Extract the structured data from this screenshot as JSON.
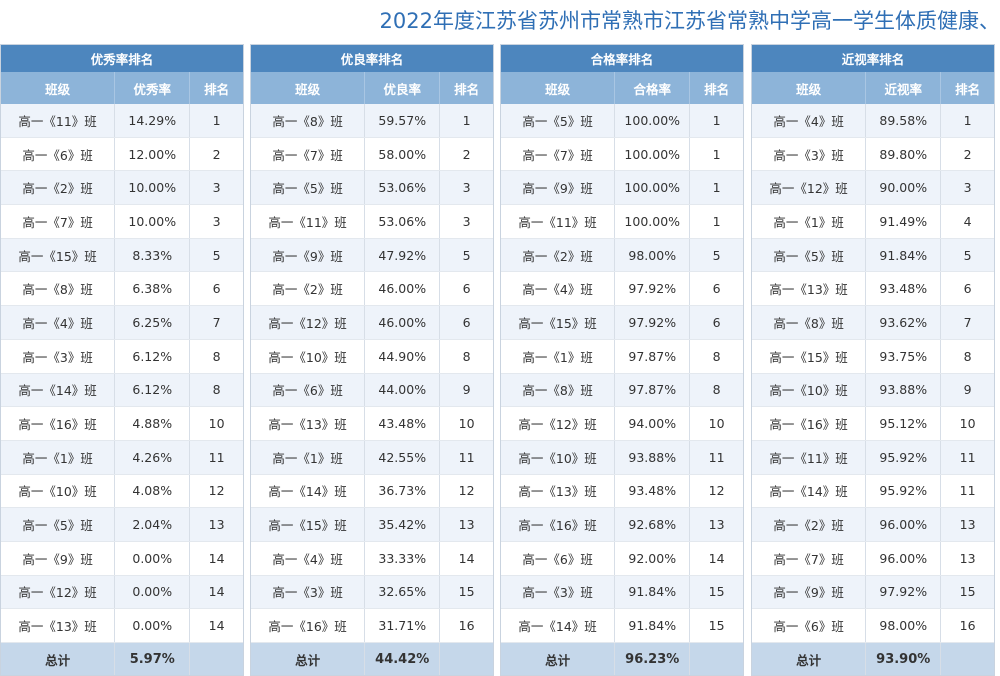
{
  "title": "2022年度江苏省苏州市常熟市江苏省常熟中学高一学生体质健康、",
  "panels": [
    {
      "title": "优秀率排名",
      "headers": [
        "班级",
        "优秀率",
        "排名"
      ],
      "rows": [
        [
          "高一《11》班",
          "14.29%",
          "1"
        ],
        [
          "高一《6》班",
          "12.00%",
          "2"
        ],
        [
          "高一《2》班",
          "10.00%",
          "3"
        ],
        [
          "高一《7》班",
          "10.00%",
          "3"
        ],
        [
          "高一《15》班",
          "8.33%",
          "5"
        ],
        [
          "高一《8》班",
          "6.38%",
          "6"
        ],
        [
          "高一《4》班",
          "6.25%",
          "7"
        ],
        [
          "高一《3》班",
          "6.12%",
          "8"
        ],
        [
          "高一《14》班",
          "6.12%",
          "8"
        ],
        [
          "高一《16》班",
          "4.88%",
          "10"
        ],
        [
          "高一《1》班",
          "4.26%",
          "11"
        ],
        [
          "高一《10》班",
          "4.08%",
          "12"
        ],
        [
          "高一《5》班",
          "2.04%",
          "13"
        ],
        [
          "高一《9》班",
          "0.00%",
          "14"
        ],
        [
          "高一《12》班",
          "0.00%",
          "14"
        ],
        [
          "高一《13》班",
          "0.00%",
          "14"
        ]
      ],
      "total_label": "总计",
      "total_value": "5.97%"
    },
    {
      "title": "优良率排名",
      "headers": [
        "班级",
        "优良率",
        "排名"
      ],
      "rows": [
        [
          "高一《8》班",
          "59.57%",
          "1"
        ],
        [
          "高一《7》班",
          "58.00%",
          "2"
        ],
        [
          "高一《5》班",
          "53.06%",
          "3"
        ],
        [
          "高一《11》班",
          "53.06%",
          "3"
        ],
        [
          "高一《9》班",
          "47.92%",
          "5"
        ],
        [
          "高一《2》班",
          "46.00%",
          "6"
        ],
        [
          "高一《12》班",
          "46.00%",
          "6"
        ],
        [
          "高一《10》班",
          "44.90%",
          "8"
        ],
        [
          "高一《6》班",
          "44.00%",
          "9"
        ],
        [
          "高一《13》班",
          "43.48%",
          "10"
        ],
        [
          "高一《1》班",
          "42.55%",
          "11"
        ],
        [
          "高一《14》班",
          "36.73%",
          "12"
        ],
        [
          "高一《15》班",
          "35.42%",
          "13"
        ],
        [
          "高一《4》班",
          "33.33%",
          "14"
        ],
        [
          "高一《3》班",
          "32.65%",
          "15"
        ],
        [
          "高一《16》班",
          "31.71%",
          "16"
        ]
      ],
      "total_label": "总计",
      "total_value": "44.42%"
    },
    {
      "title": "合格率排名",
      "headers": [
        "班级",
        "合格率",
        "排名"
      ],
      "rows": [
        [
          "高一《5》班",
          "100.00%",
          "1"
        ],
        [
          "高一《7》班",
          "100.00%",
          "1"
        ],
        [
          "高一《9》班",
          "100.00%",
          "1"
        ],
        [
          "高一《11》班",
          "100.00%",
          "1"
        ],
        [
          "高一《2》班",
          "98.00%",
          "5"
        ],
        [
          "高一《4》班",
          "97.92%",
          "6"
        ],
        [
          "高一《15》班",
          "97.92%",
          "6"
        ],
        [
          "高一《1》班",
          "97.87%",
          "8"
        ],
        [
          "高一《8》班",
          "97.87%",
          "8"
        ],
        [
          "高一《12》班",
          "94.00%",
          "10"
        ],
        [
          "高一《10》班",
          "93.88%",
          "11"
        ],
        [
          "高一《13》班",
          "93.48%",
          "12"
        ],
        [
          "高一《16》班",
          "92.68%",
          "13"
        ],
        [
          "高一《6》班",
          "92.00%",
          "14"
        ],
        [
          "高一《3》班",
          "91.84%",
          "15"
        ],
        [
          "高一《14》班",
          "91.84%",
          "15"
        ]
      ],
      "total_label": "总计",
      "total_value": "96.23%"
    },
    {
      "title": "近视率排名",
      "headers": [
        "班级",
        "近视率",
        "排名"
      ],
      "rows": [
        [
          "高一《4》班",
          "89.58%",
          "1"
        ],
        [
          "高一《3》班",
          "89.80%",
          "2"
        ],
        [
          "高一《12》班",
          "90.00%",
          "3"
        ],
        [
          "高一《1》班",
          "91.49%",
          "4"
        ],
        [
          "高一《5》班",
          "91.84%",
          "5"
        ],
        [
          "高一《13》班",
          "93.48%",
          "6"
        ],
        [
          "高一《8》班",
          "93.62%",
          "7"
        ],
        [
          "高一《15》班",
          "93.75%",
          "8"
        ],
        [
          "高一《10》班",
          "93.88%",
          "9"
        ],
        [
          "高一《16》班",
          "95.12%",
          "10"
        ],
        [
          "高一《11》班",
          "95.92%",
          "11"
        ],
        [
          "高一《14》班",
          "95.92%",
          "11"
        ],
        [
          "高一《2》班",
          "96.00%",
          "13"
        ],
        [
          "高一《7》班",
          "96.00%",
          "13"
        ],
        [
          "高一《9》班",
          "97.92%",
          "15"
        ],
        [
          "高一《6》班",
          "98.00%",
          "16"
        ]
      ],
      "total_label": "总计",
      "total_value": "93.90%"
    }
  ]
}
